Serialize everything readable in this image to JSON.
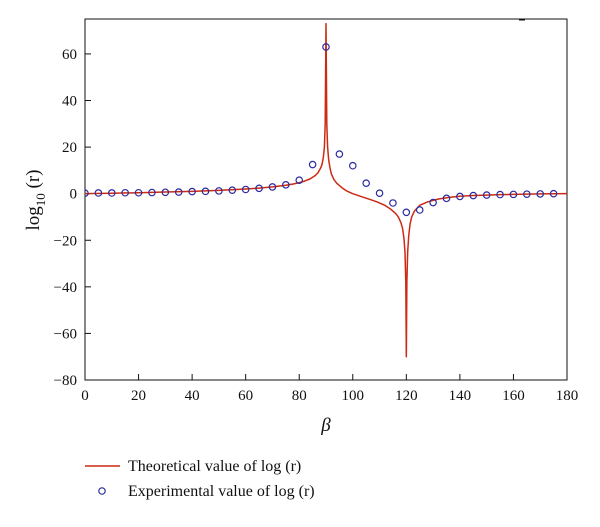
{
  "chart_data": {
    "type": "line",
    "xlabel": "β",
    "ylabel_base": "log",
    "ylabel_sub": "10",
    "ylabel_tail": " (r)",
    "xlim": [
      0,
      180
    ],
    "ylim": [
      -80,
      75
    ],
    "x_ticks": [
      0,
      20,
      40,
      60,
      80,
      100,
      120,
      140,
      160,
      180
    ],
    "y_ticks": [
      60,
      40,
      20,
      0,
      -20,
      -40,
      -60,
      -80
    ],
    "y_tick_labels": [
      "60",
      "40",
      "20",
      "0",
      "−20",
      "−40",
      "−60",
      "−80"
    ],
    "grid": false,
    "legend_position": "bottom-left",
    "series": [
      {
        "name": "Theoretical value of log (r)",
        "kind": "line",
        "color": "#cc2a12",
        "x": [
          0,
          10,
          20,
          30,
          40,
          50,
          60,
          65,
          70,
          75,
          78,
          81,
          84,
          86,
          87,
          88,
          88.5,
          89,
          89.4,
          89.7,
          90,
          90.3,
          90.6,
          91,
          91.5,
          92,
          93,
          94,
          96,
          98,
          100,
          103,
          106,
          109,
          112,
          114,
          116,
          117,
          118,
          118.6,
          119.1,
          119.5,
          119.8,
          120,
          120.2,
          120.5,
          120.9,
          121.4,
          122,
          123,
          125,
          128,
          132,
          136,
          140,
          145,
          150,
          155,
          160,
          165,
          170,
          175,
          180
        ],
        "y": [
          0,
          0.2,
          0.4,
          0.7,
          1.0,
          1.4,
          2.0,
          2.4,
          2.9,
          3.6,
          4.2,
          5.0,
          6.3,
          7.8,
          9.0,
          11.0,
          12.5,
          15.5,
          20.0,
          30.0,
          73.0,
          30.0,
          20.0,
          14.5,
          11.0,
          8.5,
          6.0,
          4.5,
          2.5,
          1.0,
          0,
          -1.2,
          -2.3,
          -3.5,
          -5.0,
          -6.5,
          -8.5,
          -10.0,
          -12.5,
          -15.0,
          -19.0,
          -25.0,
          -38.0,
          -70.0,
          -38.0,
          -25.0,
          -18.0,
          -13.0,
          -10.0,
          -7.5,
          -5.0,
          -3.5,
          -2.3,
          -1.6,
          -1.1,
          -0.8,
          -0.6,
          -0.4,
          -0.3,
          -0.2,
          -0.1,
          -0.05,
          0
        ]
      },
      {
        "name": "Experimental value of log (r)",
        "kind": "scatter",
        "color": "#2b2ba0",
        "x": [
          0,
          5,
          10,
          15,
          20,
          25,
          30,
          35,
          40,
          45,
          50,
          55,
          60,
          65,
          70,
          75,
          80,
          85,
          90,
          95,
          100,
          105,
          110,
          115,
          120,
          125,
          130,
          135,
          140,
          145,
          150,
          155,
          160,
          165,
          170,
          175
        ],
        "y": [
          0.2,
          0.3,
          0.3,
          0.4,
          0.4,
          0.5,
          0.6,
          0.7,
          0.9,
          1.0,
          1.2,
          1.5,
          1.8,
          2.3,
          2.9,
          3.8,
          5.8,
          12.5,
          63.0,
          17.0,
          12.0,
          4.5,
          0.2,
          -4.0,
          -8.0,
          -7.0,
          -3.8,
          -2.0,
          -1.2,
          -0.8,
          -0.6,
          -0.4,
          -0.3,
          -0.2,
          -0.1,
          0.0
        ]
      }
    ]
  }
}
